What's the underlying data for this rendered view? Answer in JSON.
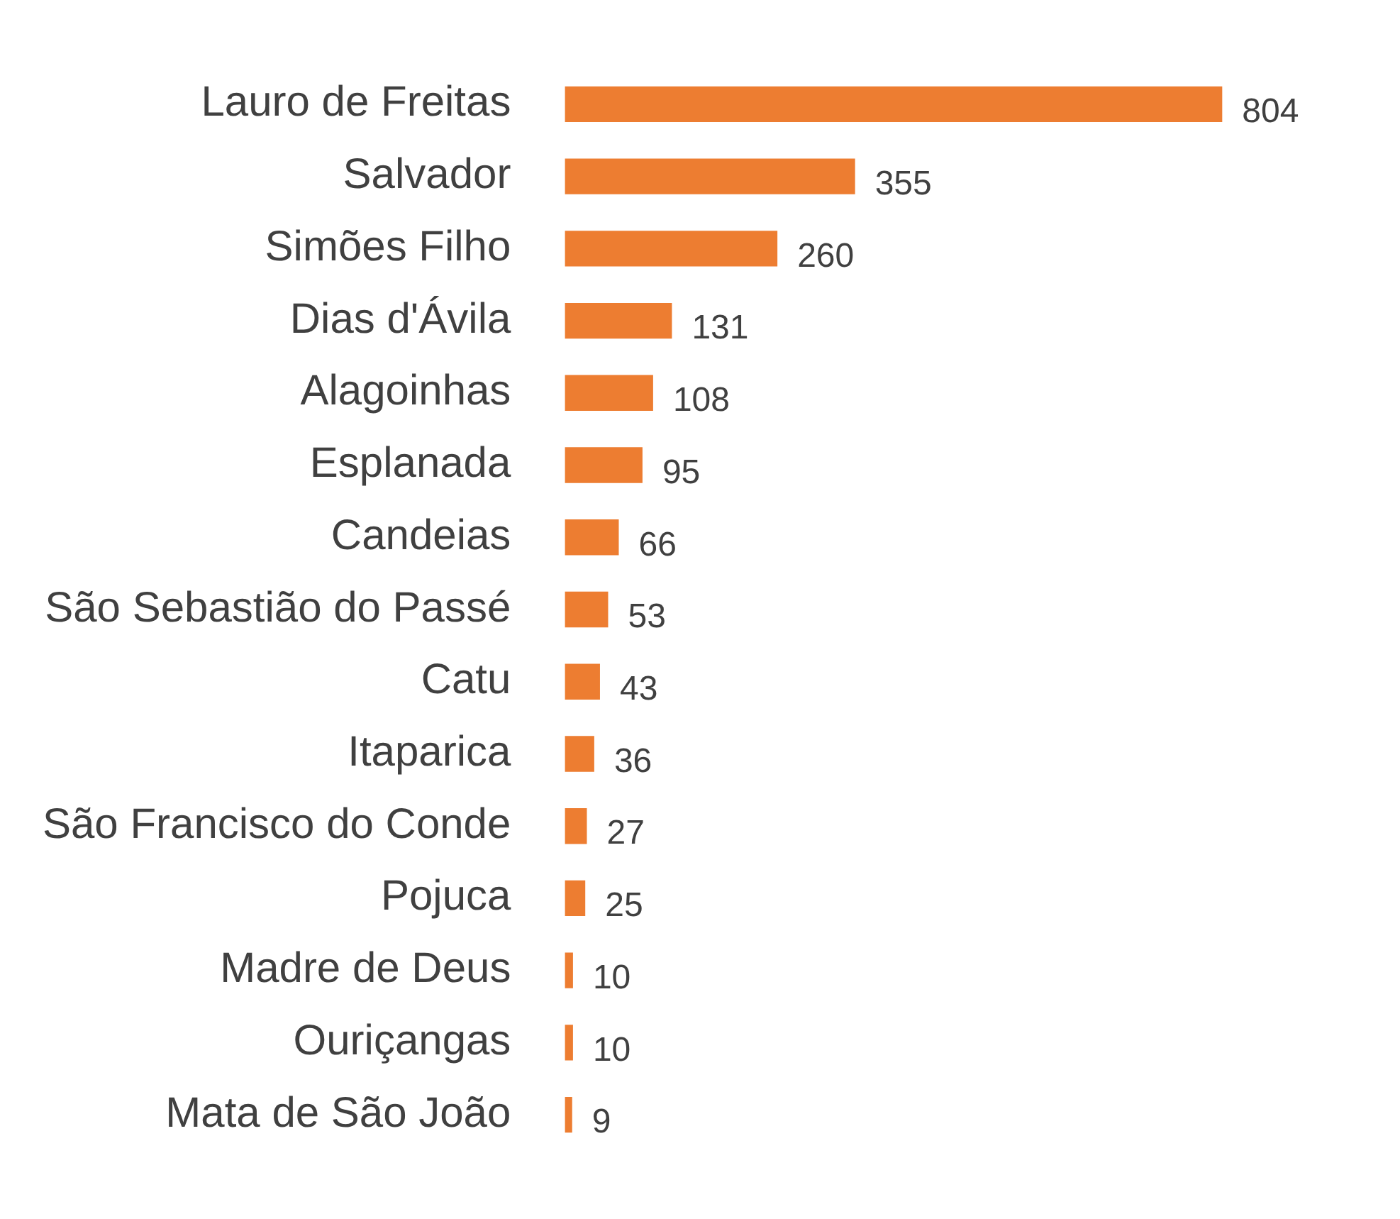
{
  "chart_data": {
    "type": "bar",
    "orientation": "horizontal",
    "data_labels": true,
    "legend": false,
    "categories": [
      "Lauro de Freitas",
      "Salvador",
      "Simões Filho",
      "Dias d'Ávila",
      "Alagoinhas",
      "Esplanada",
      "Candeias",
      "São Sebastião do Passé",
      "Catu",
      "Itaparica",
      "São Francisco do Conde",
      "Pojuca",
      "Madre de Deus",
      "Ouriçangas",
      "Mata de São João"
    ],
    "values": [
      804,
      355,
      260,
      131,
      108,
      95,
      66,
      53,
      43,
      36,
      27,
      25,
      10,
      10,
      9
    ],
    "color": "#ed7d31"
  }
}
